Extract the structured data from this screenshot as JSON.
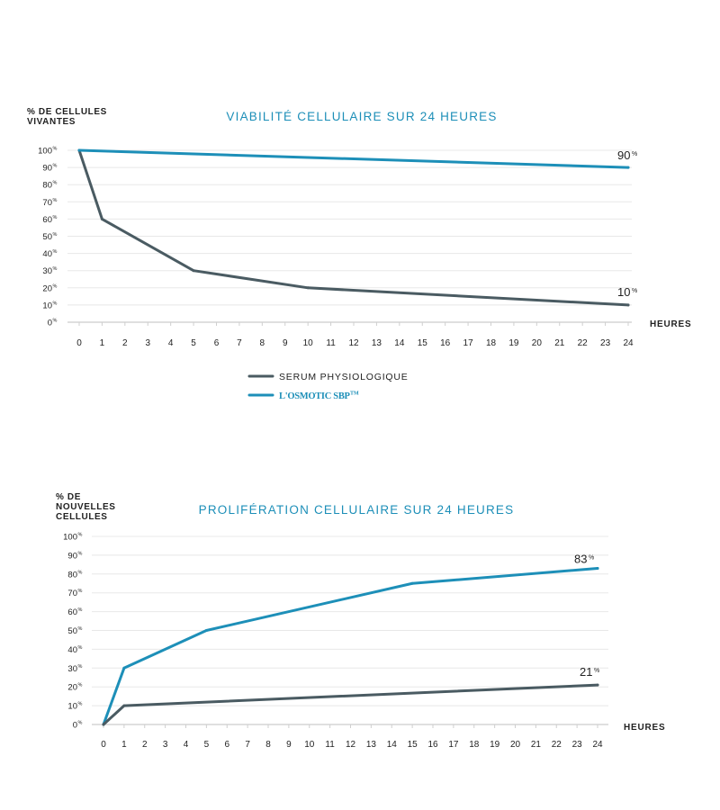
{
  "chart_data": [
    {
      "type": "line",
      "title": "VIABILITÉ CELLULAIRE SUR 24 HEURES",
      "ylabel_lines": [
        "% DE CELLULES",
        "VIVANTES"
      ],
      "xlabel": "HEURES",
      "ylim": [
        0,
        100
      ],
      "xlim": [
        0,
        24
      ],
      "y_ticks": [
        "100",
        "90",
        "80",
        "70",
        "60",
        "50",
        "40",
        "30",
        "20",
        "10",
        "0"
      ],
      "y_tick_unit": "%",
      "x_ticks": [
        "0",
        "1",
        "2",
        "3",
        "4",
        "5",
        "6",
        "7",
        "8",
        "9",
        "10",
        "11",
        "12",
        "13",
        "14",
        "15",
        "16",
        "17",
        "18",
        "19",
        "20",
        "21",
        "22",
        "23",
        "24"
      ],
      "grid": true,
      "series": [
        {
          "name": "SERUM PHYSIOLOGIQUE",
          "color": "#4a5b62",
          "x": [
            0,
            1,
            5,
            10,
            24
          ],
          "y": [
            100,
            60,
            30,
            20,
            10
          ]
        },
        {
          "name": "L'OSMOTIC SBP",
          "color": "#1d8fb8",
          "x": [
            0,
            24
          ],
          "y": [
            100,
            90
          ]
        }
      ],
      "end_labels": [
        {
          "series": 1,
          "value": "90",
          "unit": "%"
        },
        {
          "series": 0,
          "value": "10",
          "unit": "%"
        }
      ],
      "legend": {
        "placement": "bottom-left",
        "items": [
          {
            "label": "SERUM PHYSIOLOGIQUE",
            "style": "plain"
          },
          {
            "label": "L'OSMOTIC SBP",
            "trademark": "TM",
            "style": "brand"
          }
        ]
      }
    },
    {
      "type": "line",
      "title": "PROLIFÉRATION CELLULAIRE SUR 24 HEURES",
      "ylabel_lines": [
        "% DE",
        "NOUVELLES",
        "CELLULES"
      ],
      "xlabel": "HEURES",
      "ylim": [
        0,
        100
      ],
      "xlim": [
        0,
        24
      ],
      "y_ticks": [
        "100",
        "90",
        "80",
        "70",
        "60",
        "50",
        "40",
        "30",
        "20",
        "10",
        "0"
      ],
      "y_tick_unit": "%",
      "x_ticks": [
        "0",
        "1",
        "2",
        "3",
        "4",
        "5",
        "6",
        "7",
        "8",
        "9",
        "10",
        "11",
        "12",
        "13",
        "14",
        "15",
        "16",
        "17",
        "18",
        "19",
        "20",
        "21",
        "22",
        "23",
        "24"
      ],
      "grid": true,
      "series": [
        {
          "name": "L'OSMOTIC SBP",
          "color": "#1d8fb8",
          "x": [
            0,
            1,
            5,
            15,
            24
          ],
          "y": [
            0,
            30,
            50,
            75,
            83
          ]
        },
        {
          "name": "SERUM PHYSIOLOGIQUE",
          "color": "#4a5b62",
          "x": [
            0,
            1,
            24
          ],
          "y": [
            0,
            10,
            21
          ]
        }
      ],
      "end_labels": [
        {
          "series": 0,
          "value": "83",
          "unit": "%"
        },
        {
          "series": 1,
          "value": "21",
          "unit": "%"
        }
      ]
    }
  ]
}
